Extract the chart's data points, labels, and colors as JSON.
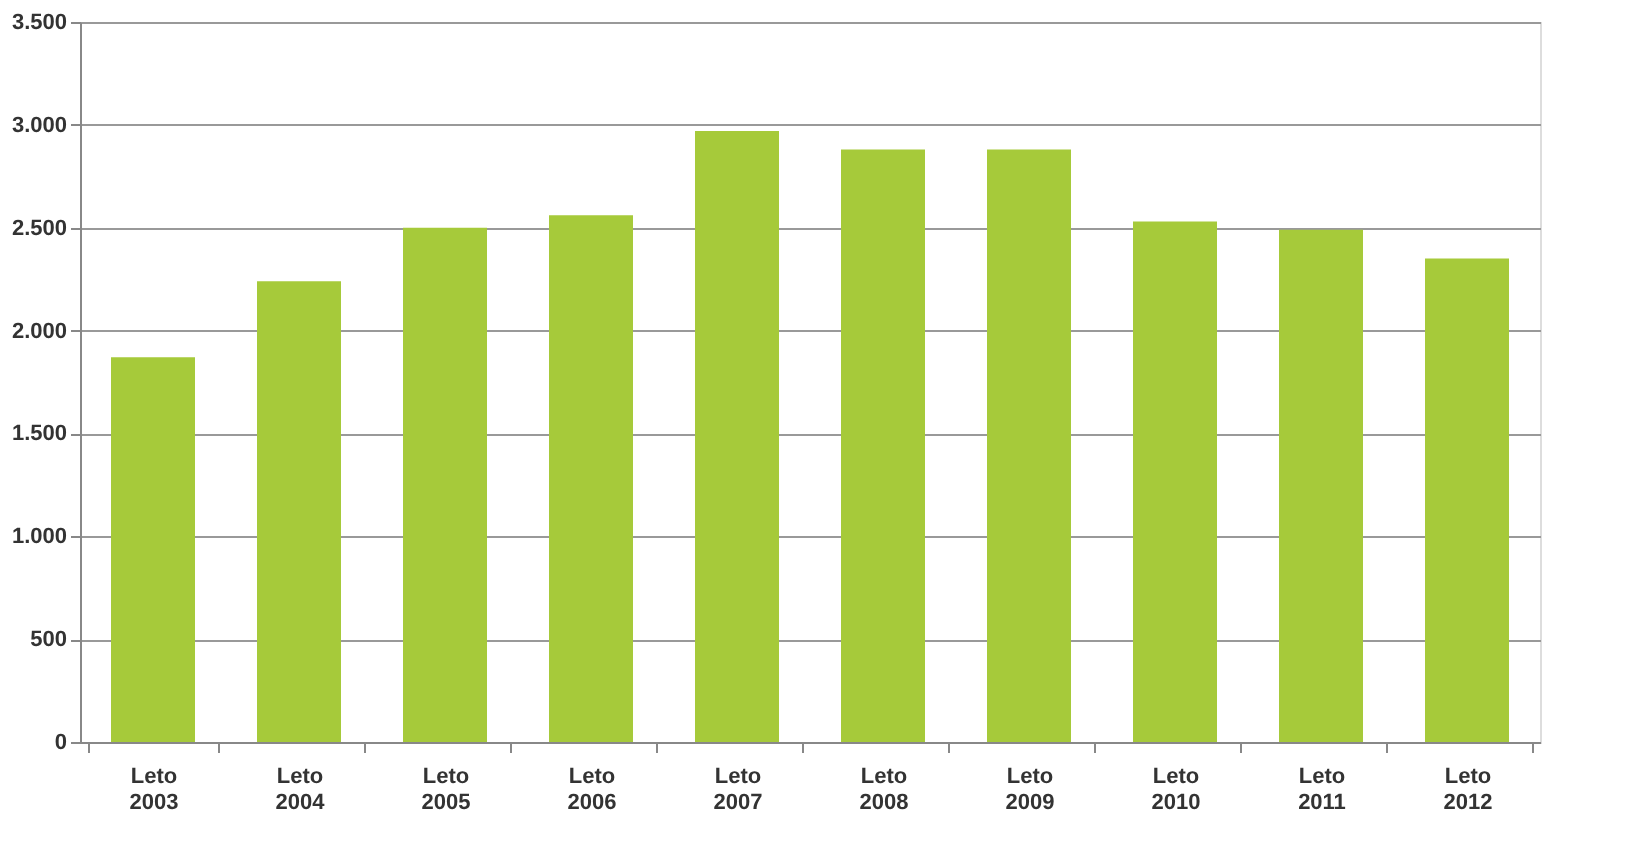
{
  "chart_data": {
    "type": "bar",
    "categories": [
      "Leto 2003",
      "Leto 2004",
      "Leto 2005",
      "Leto 2006",
      "Leto 2007",
      "Leto 2008",
      "Leto 2009",
      "Leto 2010",
      "Leto 2011",
      "Leto 2012"
    ],
    "values": [
      1870,
      2240,
      2500,
      2560,
      2970,
      2880,
      2880,
      2530,
      2490,
      2350
    ],
    "color": "#a6ca3a",
    "ylim": [
      0,
      3500
    ],
    "yticks": [
      0,
      {
        "value": 500,
        "label": "500"
      },
      {
        "value": 1000,
        "label": "1.000"
      },
      {
        "value": 1500,
        "label": "1.500"
      },
      {
        "value": 2000,
        "label": "2.000"
      },
      {
        "value": 2500,
        "label": "2.500"
      },
      {
        "value": 3000,
        "label": "3.000"
      },
      {
        "value": 3500,
        "label": "3.500"
      }
    ],
    "grid": "y"
  }
}
